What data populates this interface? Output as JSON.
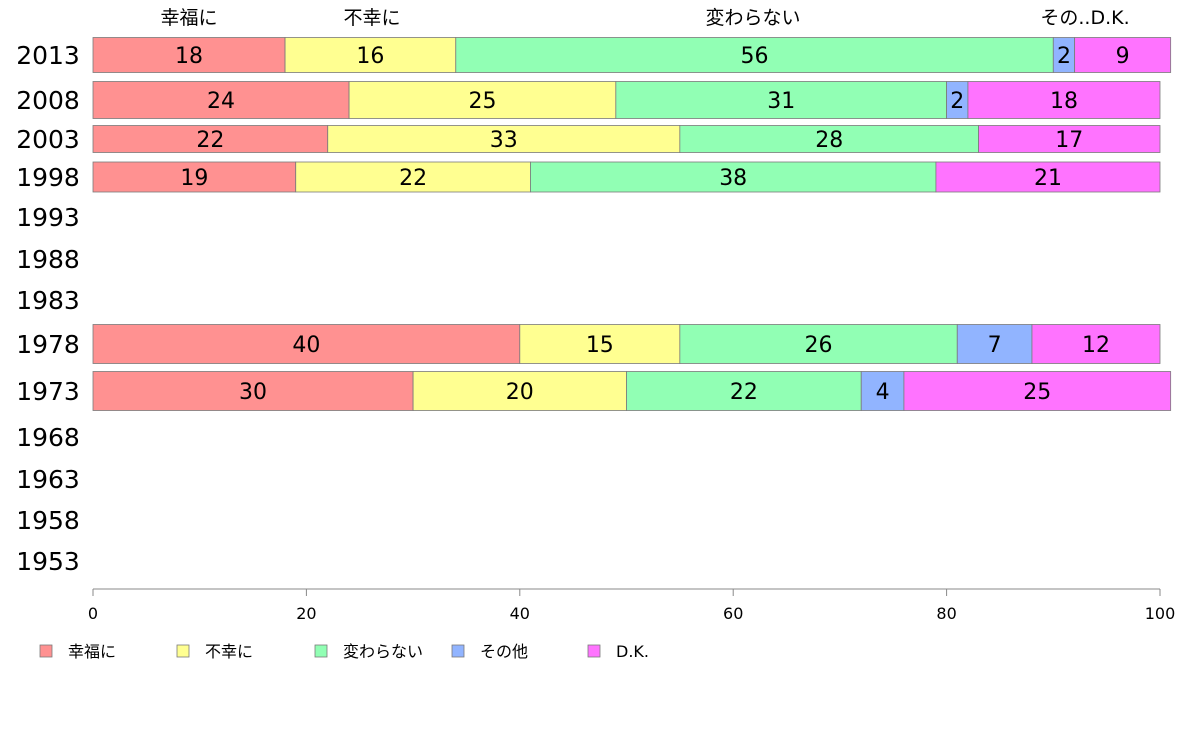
{
  "chart_data": {
    "type": "bar",
    "orientation": "horizontal",
    "stacked": true,
    "categories": [
      "2013",
      "2008",
      "2003",
      "1998",
      "1993",
      "1988",
      "1983",
      "1978",
      "1973",
      "1968",
      "1963",
      "1958",
      "1953"
    ],
    "series": [
      {
        "name": "幸福に",
        "color": "#ff9191",
        "values": [
          18,
          24,
          22,
          19,
          null,
          null,
          null,
          40,
          30,
          null,
          null,
          null,
          null
        ]
      },
      {
        "name": "不幸に",
        "color": "#ffff91",
        "values": [
          16,
          25,
          33,
          22,
          null,
          null,
          null,
          15,
          20,
          null,
          null,
          null,
          null
        ]
      },
      {
        "name": "変わらない",
        "color": "#91ffb4",
        "values": [
          56,
          31,
          28,
          38,
          null,
          null,
          null,
          26,
          22,
          null,
          null,
          null,
          null
        ]
      },
      {
        "name": "その他",
        "color": "#91b4ff",
        "values": [
          2,
          2,
          0,
          0,
          null,
          null,
          null,
          7,
          4,
          null,
          null,
          null,
          null
        ]
      },
      {
        "name": "D.K.",
        "color": "#ff73ff",
        "values": [
          9,
          18,
          17,
          21,
          null,
          null,
          null,
          12,
          25,
          null,
          null,
          null,
          null
        ]
      }
    ],
    "column_headers": [
      "幸福に",
      "不幸に",
      "変わらない",
      "その..D.K."
    ],
    "xlim": [
      0,
      100
    ],
    "xticks": [
      0,
      20,
      40,
      60,
      80,
      100
    ],
    "grid": false,
    "legend_position": "bottom-left"
  }
}
